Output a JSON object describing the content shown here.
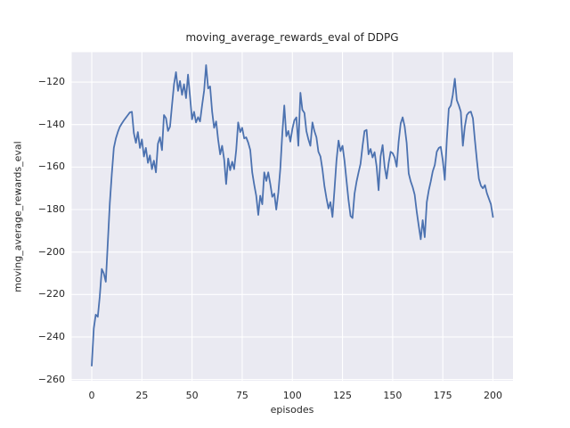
{
  "colors": {
    "figure_background": "#ffffff",
    "plot_background": "#eaeaf2",
    "gridline": "#ffffff",
    "line": "#4c72b0",
    "text": "#262626"
  },
  "chart_data": {
    "type": "line",
    "title": "moving_average_rewards_eval of DDPG",
    "xlabel": "episodes",
    "ylabel": "moving_average_rewards_eval",
    "series_name": "moving_average_rewards_eval",
    "legend": "none",
    "grid": true,
    "xlim": [
      -10,
      210
    ],
    "ylim": [
      -260.6,
      -105.9
    ],
    "xticks": [
      0,
      25,
      50,
      75,
      100,
      125,
      150,
      175,
      200
    ],
    "xtick_labels": [
      "0",
      "25",
      "50",
      "75",
      "100",
      "125",
      "150",
      "175",
      "200"
    ],
    "yticks": [
      -120,
      -140,
      -160,
      -180,
      -200,
      -220,
      -240,
      -260
    ],
    "ytick_labels": [
      "−120",
      "−140",
      "−160",
      "−180",
      "−200",
      "−220",
      "−240",
      "−260"
    ],
    "x": [
      0,
      1,
      2,
      3,
      4,
      5,
      6,
      7,
      8,
      9,
      10,
      11,
      12,
      13,
      14,
      15,
      16,
      17,
      18,
      19,
      20,
      21,
      22,
      23,
      24,
      25,
      26,
      27,
      28,
      29,
      30,
      31,
      32,
      33,
      34,
      35,
      36,
      37,
      38,
      39,
      40,
      41,
      42,
      43,
      44,
      45,
      46,
      47,
      48,
      49,
      50,
      51,
      52,
      53,
      54,
      55,
      56,
      57,
      58,
      59,
      60,
      61,
      62,
      63,
      64,
      65,
      66,
      67,
      68,
      69,
      70,
      71,
      72,
      73,
      74,
      75,
      76,
      77,
      78,
      79,
      80,
      81,
      82,
      83,
      84,
      85,
      86,
      87,
      88,
      89,
      90,
      91,
      92,
      93,
      94,
      95,
      96,
      97,
      98,
      99,
      100,
      101,
      102,
      103,
      104,
      105,
      106,
      107,
      108,
      109,
      110,
      111,
      112,
      113,
      114,
      115,
      116,
      117,
      118,
      119,
      120,
      121,
      122,
      123,
      124,
      125,
      126,
      127,
      128,
      129,
      130,
      131,
      132,
      133,
      134,
      135,
      136,
      137,
      138,
      139,
      140,
      141,
      142,
      143,
      144,
      145,
      146,
      147,
      148,
      149,
      150,
      151,
      152,
      153,
      154,
      155,
      156,
      157,
      158,
      159,
      160,
      161,
      162,
      163,
      164,
      165,
      166,
      167,
      168,
      169,
      170,
      171,
      172,
      173,
      174,
      175,
      176,
      177,
      178,
      179,
      180,
      181,
      182,
      183,
      184,
      185,
      186,
      187,
      188,
      189,
      190,
      191,
      192,
      193,
      194,
      195,
      196,
      197,
      198,
      199,
      200
    ],
    "values": [
      -253.5,
      -236,
      -229.5,
      -230.5,
      -221,
      -208,
      -210,
      -214,
      -196,
      -177,
      -163.5,
      -151,
      -146.5,
      -143.5,
      -141,
      -139.5,
      -138,
      -136.8,
      -135.5,
      -134.3,
      -134,
      -144,
      -148.6,
      -143.5,
      -151,
      -147,
      -155,
      -151,
      -158,
      -154.5,
      -161,
      -157,
      -162.5,
      -149,
      -146,
      -152,
      -135.5,
      -137,
      -143,
      -141,
      -131,
      -121,
      -115.3,
      -124.1,
      -119.5,
      -126,
      -121,
      -127.5,
      -116.5,
      -127,
      -137.5,
      -134,
      -139,
      -136.5,
      -138.5,
      -131,
      -124,
      -112,
      -123,
      -122,
      -134,
      -141.5,
      -138.5,
      -147,
      -154,
      -150,
      -156.5,
      -168,
      -156,
      -161.5,
      -157.5,
      -161,
      -152,
      -139,
      -143.5,
      -141.5,
      -146.5,
      -146,
      -148.5,
      -152,
      -162.5,
      -168.5,
      -173.5,
      -182.5,
      -173.5,
      -177.5,
      -162.5,
      -166.5,
      -162.5,
      -168,
      -174,
      -172.5,
      -180,
      -172,
      -161,
      -144,
      -131,
      -145.5,
      -143,
      -148,
      -142,
      -138,
      -136.6,
      -150,
      -125,
      -133,
      -134.5,
      -143,
      -147,
      -150,
      -139,
      -143,
      -146,
      -152.8,
      -155,
      -161,
      -169,
      -174.5,
      -179.5,
      -176.5,
      -183.5,
      -171,
      -157,
      -147.5,
      -152.5,
      -150,
      -157,
      -166.5,
      -175.5,
      -183,
      -184,
      -172.5,
      -167,
      -162.5,
      -158.5,
      -150,
      -143,
      -142.5,
      -154,
      -151.5,
      -155.5,
      -153,
      -159.5,
      -170.9,
      -155,
      -149.6,
      -160,
      -165.4,
      -158,
      -152.8,
      -153.5,
      -155.5,
      -159.8,
      -148,
      -139.4,
      -136.6,
      -141,
      -148.6,
      -163,
      -166.7,
      -169.5,
      -173,
      -181,
      -187.5,
      -194,
      -185,
      -193,
      -176.5,
      -171,
      -166.7,
      -162,
      -159,
      -152.8,
      -151,
      -150.5,
      -157,
      -166,
      -147,
      -132.5,
      -131,
      -126,
      -118.4,
      -128.5,
      -131,
      -134,
      -150,
      -141,
      -135.5,
      -134.3,
      -133.9,
      -137,
      -147.2,
      -157,
      -165.5,
      -168.8,
      -170,
      -168.5,
      -172.3,
      -175,
      -177.5,
      -183.5
    ]
  }
}
